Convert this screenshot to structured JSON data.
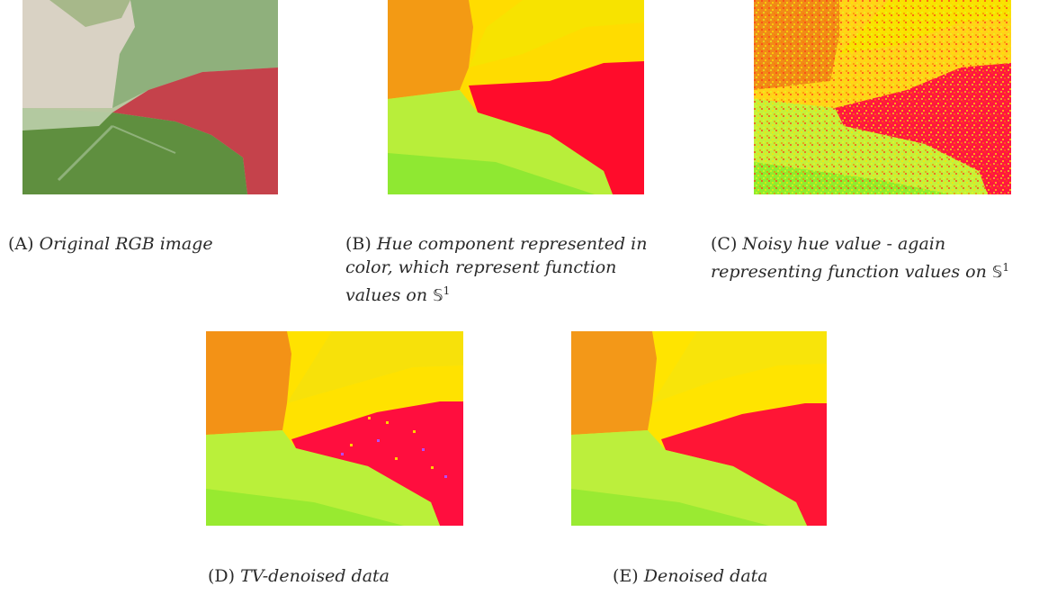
{
  "figure": {
    "panels": [
      {
        "id": "A",
        "tag": "(A)",
        "caption": "Original RGB image",
        "math": "",
        "exponent": ""
      },
      {
        "id": "B",
        "tag": "(B)",
        "caption": "Hue component represented in color, which represent function values on",
        "math": "𝕊",
        "exponent": "1"
      },
      {
        "id": "C",
        "tag": "(C)",
        "caption": "Noisy hue value - again representing function values on",
        "math": "𝕊",
        "exponent": "1"
      },
      {
        "id": "D",
        "tag": "(D)",
        "caption": "TV-denoised data",
        "math": "",
        "exponent": ""
      },
      {
        "id": "E",
        "tag": "(E)",
        "caption": "Denoised data",
        "math": "",
        "exponent": ""
      }
    ]
  }
}
